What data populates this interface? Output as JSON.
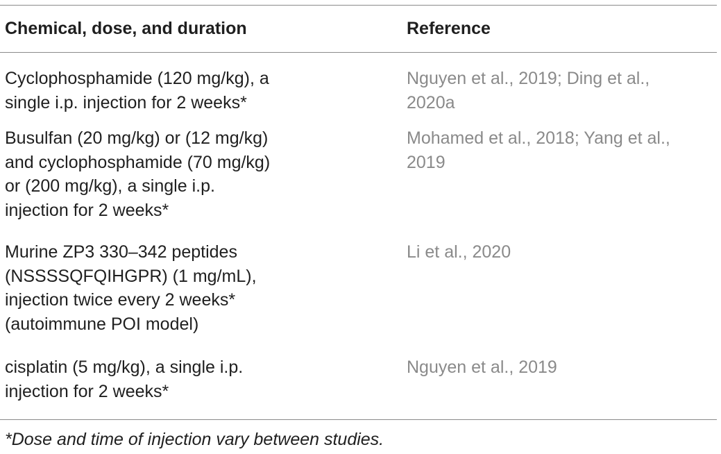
{
  "table": {
    "headers": [
      "Chemical, dose, and duration",
      "Reference"
    ],
    "rows": [
      {
        "chemical": "Cyclophosphamide (120 mg/kg), a\nsingle i.p. injection for 2 weeks*",
        "reference": "Nguyen et al., 2019; Ding et al.,\n2020a"
      },
      {
        "chemical": "Busulfan (20 mg/kg) or (12 mg/kg)\nand cyclophosphamide (70 mg/kg)\nor (200 mg/kg), a single i.p.\ninjection for 2 weeks*",
        "reference": "Mohamed et al., 2018; Yang et al.,\n2019"
      },
      {
        "chemical": "Murine ZP3 330–342 peptides\n(NSSSSQFQIHGPR) (1 mg/mL),\ninjection twice every 2 weeks*\n(autoimmune POI model)",
        "reference": "Li et al., 2020"
      },
      {
        "chemical": "cisplatin (5 mg/kg), a single i.p.\ninjection for 2 weeks*",
        "reference": "Nguyen et al., 2019"
      }
    ]
  },
  "footnote": "*Dose and time of injection vary between studies.",
  "colors": {
    "text": "#1f1f1f",
    "reference_text": "#8a8a8a",
    "rule": "#8a8a8a"
  }
}
